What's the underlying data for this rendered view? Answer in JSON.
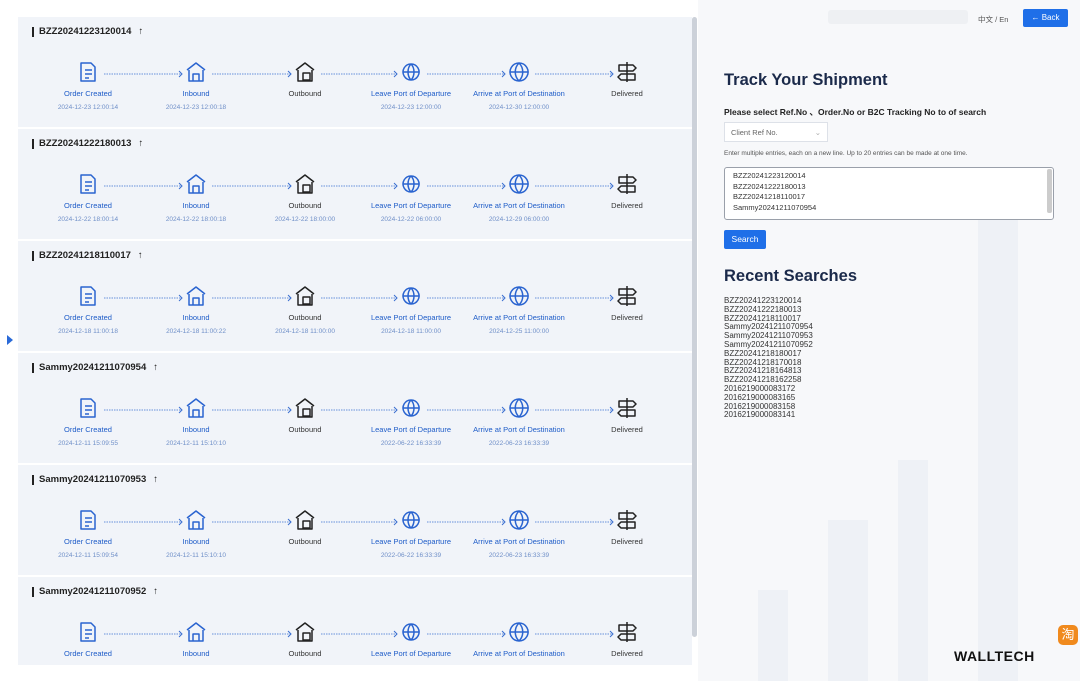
{
  "header": {
    "lang": "中文 / En",
    "back": "← Back"
  },
  "shipments": [
    {
      "ref": "BZZ20241223120014",
      "steps": [
        {
          "label": "Order Created",
          "time": "2024-12-23 12:00:14"
        },
        {
          "label": "Inbound",
          "time": "2024-12-23 12:00:18"
        },
        {
          "label": "Outbound"
        },
        {
          "label": "Leave Port of Departure",
          "time": "2024-12-23 12:00:00"
        },
        {
          "label": "Arrive at Port of Destination",
          "time": "2024-12-30 12:00:00"
        },
        {
          "label": "Delivered"
        }
      ]
    },
    {
      "ref": "BZZ20241222180013",
      "steps": [
        {
          "label": "Order Created",
          "time": "2024-12-22 18:00:14"
        },
        {
          "label": "Inbound",
          "time": "2024-12-22 18:00:18"
        },
        {
          "label": "Outbound",
          "time": "2024-12-22 18:00:00"
        },
        {
          "label": "Leave Port of Departure",
          "time": "2024-12-22 06:00:00"
        },
        {
          "label": "Arrive at Port of Destination",
          "time": "2024-12-29 06:00:00"
        },
        {
          "label": "Delivered"
        }
      ]
    },
    {
      "ref": "BZZ20241218110017",
      "steps": [
        {
          "label": "Order Created",
          "time": "2024-12-18 11:00:18"
        },
        {
          "label": "Inbound",
          "time": "2024-12-18 11:00:22"
        },
        {
          "label": "Outbound",
          "time": "2024-12-18 11:00:00"
        },
        {
          "label": "Leave Port of Departure",
          "time": "2024-12-18 11:00:00"
        },
        {
          "label": "Arrive at Port of Destination",
          "time": "2024-12-25 11:00:00"
        },
        {
          "label": "Delivered"
        }
      ]
    },
    {
      "ref": "Sammy20241211070954",
      "steps": [
        {
          "label": "Order Created",
          "time": "2024-12-11 15:09:55"
        },
        {
          "label": "Inbound",
          "time": "2024-12-11 15:10:10"
        },
        {
          "label": "Outbound"
        },
        {
          "label": "Leave Port of Departure",
          "time": "2022-06-22 16:33:39"
        },
        {
          "label": "Arrive at Port of Destination",
          "time": "2022-06-23 16:33:39"
        },
        {
          "label": "Delivered"
        }
      ]
    },
    {
      "ref": "Sammy20241211070953",
      "steps": [
        {
          "label": "Order Created",
          "time": "2024-12-11 15:09:54"
        },
        {
          "label": "Inbound",
          "time": "2024-12-11 15:10:10"
        },
        {
          "label": "Outbound"
        },
        {
          "label": "Leave Port of Departure",
          "time": "2022-06-22 16:33:39"
        },
        {
          "label": "Arrive at Port of Destination",
          "time": "2022-06-23 16:33:39"
        },
        {
          "label": "Delivered"
        }
      ]
    },
    {
      "ref": "Sammy20241211070952",
      "steps": [
        {
          "label": "Order Created"
        },
        {
          "label": "Inbound"
        },
        {
          "label": "Outbound"
        },
        {
          "label": "Leave Port of Departure"
        },
        {
          "label": "Arrive at Port of Destination"
        },
        {
          "label": "Delivered"
        }
      ]
    }
  ],
  "panel": {
    "title": "Track Your Shipment",
    "instruction": "Please select Ref.No 、Order.No or B2C Tracking No to of search",
    "select": "Client Ref No.",
    "hint": "Enter multiple entries, each on a new line. Up to 20 entries can be made at one time.",
    "entries": [
      "BZZ20241223120014",
      "BZZ20241222180013",
      "BZZ20241218110017",
      "Sammy20241211070954"
    ],
    "search_button": "Search",
    "recent_title": "Recent Searches",
    "recent": [
      "BZZ20241223120014",
      "BZZ20241222180013",
      "BZZ20241218110017",
      "Sammy20241211070954",
      "Sammy20241211070953",
      "Sammy20241211070952",
      "BZZ20241218180017",
      "BZZ20241218170018",
      "BZZ20241218164813",
      "BZZ20241218162258",
      "2016219000083172",
      "2016219000083165",
      "2016219000083158",
      "2016219000083141"
    ]
  },
  "brand": "WALLTECH",
  "badge": "淘"
}
